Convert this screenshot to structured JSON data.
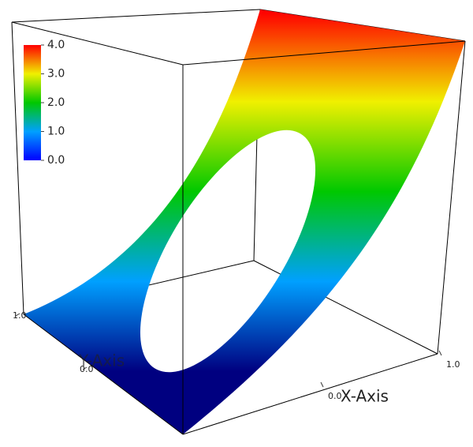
{
  "chart_data": {
    "type": "surface",
    "x_label": "X-Axis",
    "y_label": "Y-Axis",
    "xticks": [
      {
        "value": 0,
        "label": "0.0"
      },
      {
        "value": 1,
        "label": "1.0"
      }
    ],
    "yticks": [
      {
        "value": 0,
        "label": "0.0"
      },
      {
        "value": 1,
        "label": "1.0"
      }
    ],
    "colorbar": {
      "lim": [
        0,
        4
      ],
      "ticks": [
        {
          "value": 0,
          "label": "0.0"
        },
        {
          "value": 1,
          "label": "1.0"
        },
        {
          "value": 2,
          "label": "2.0"
        },
        {
          "value": 3,
          "label": "3.0"
        },
        {
          "value": 4,
          "label": "4.0"
        }
      ],
      "colormap": [
        "#0000ff",
        "#00a0ff",
        "#00c800",
        "#f0f000",
        "#ff0000"
      ]
    }
  }
}
